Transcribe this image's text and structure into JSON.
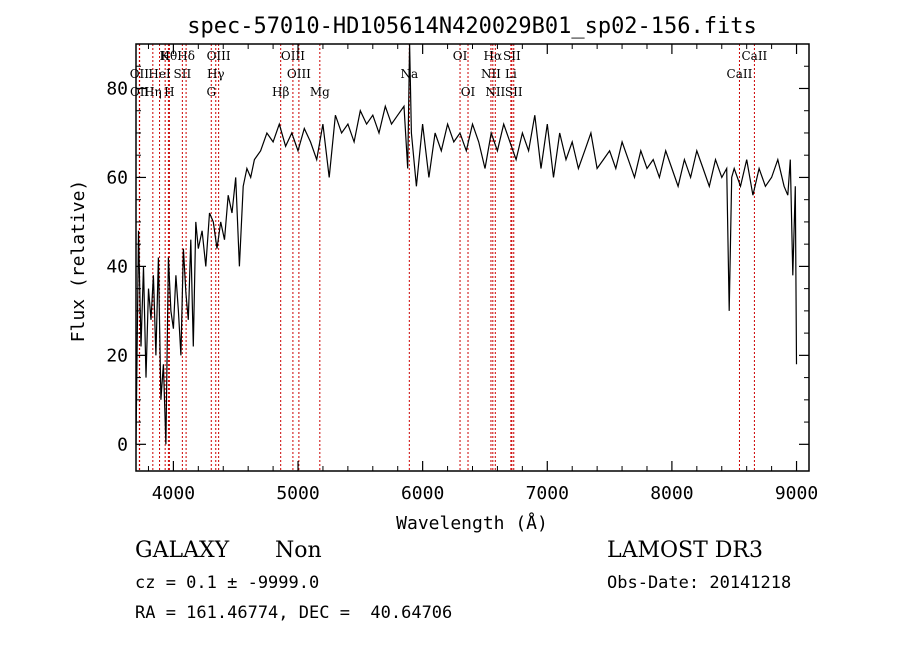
{
  "chart_data": {
    "type": "line",
    "title": "spec-57010-HD105614N420029B01_sp02-156.fits",
    "xlabel": "Wavelength (Å)",
    "ylabel": "Flux (relative)",
    "xlim": [
      3700,
      9100
    ],
    "ylim": [
      -6,
      90
    ],
    "xticks": [
      4000,
      5000,
      6000,
      7000,
      8000,
      9000
    ],
    "yticks": [
      0,
      20,
      40,
      60,
      80
    ],
    "line_color": "#000000",
    "marker_color": "#cc0000",
    "spectrum": {
      "x": [
        3700,
        3720,
        3740,
        3760,
        3780,
        3800,
        3820,
        3840,
        3860,
        3880,
        3900,
        3920,
        3940,
        3960,
        3980,
        4000,
        4020,
        4040,
        4060,
        4080,
        4100,
        4120,
        4140,
        4160,
        4180,
        4200,
        4230,
        4260,
        4290,
        4320,
        4350,
        4380,
        4410,
        4440,
        4470,
        4500,
        4530,
        4560,
        4590,
        4620,
        4650,
        4700,
        4750,
        4800,
        4850,
        4900,
        4950,
        5000,
        5050,
        5100,
        5150,
        5200,
        5250,
        5300,
        5350,
        5400,
        5450,
        5500,
        5550,
        5600,
        5650,
        5700,
        5750,
        5800,
        5850,
        5880,
        5895,
        5910,
        5950,
        6000,
        6050,
        6100,
        6150,
        6200,
        6250,
        6300,
        6350,
        6400,
        6450,
        6500,
        6550,
        6600,
        6650,
        6700,
        6750,
        6800,
        6850,
        6900,
        6950,
        7000,
        7050,
        7100,
        7150,
        7200,
        7250,
        7300,
        7350,
        7400,
        7450,
        7500,
        7550,
        7600,
        7650,
        7700,
        7750,
        7800,
        7850,
        7900,
        7950,
        8000,
        8050,
        8100,
        8150,
        8200,
        8250,
        8300,
        8350,
        8400,
        8440,
        8460,
        8480,
        8500,
        8550,
        8600,
        8650,
        8700,
        8750,
        8800,
        8850,
        8900,
        8930,
        8950,
        8970,
        8990,
        9000
      ],
      "y": [
        0,
        48,
        22,
        40,
        15,
        35,
        28,
        38,
        20,
        42,
        10,
        18,
        0,
        42,
        30,
        26,
        38,
        30,
        20,
        44,
        34,
        28,
        46,
        22,
        50,
        44,
        48,
        40,
        52,
        50,
        44,
        50,
        46,
        56,
        52,
        60,
        40,
        58,
        62,
        60,
        64,
        66,
        70,
        68,
        72,
        67,
        70,
        66,
        71,
        68,
        64,
        72,
        60,
        74,
        70,
        72,
        68,
        75,
        72,
        74,
        70,
        76,
        72,
        74,
        76,
        62,
        90,
        70,
        58,
        72,
        60,
        70,
        66,
        72,
        68,
        70,
        66,
        72,
        68,
        62,
        70,
        66,
        72,
        68,
        64,
        70,
        66,
        74,
        62,
        72,
        60,
        70,
        64,
        68,
        62,
        66,
        70,
        62,
        64,
        66,
        62,
        68,
        64,
        60,
        66,
        62,
        64,
        60,
        66,
        62,
        58,
        64,
        60,
        66,
        62,
        58,
        64,
        60,
        62,
        30,
        60,
        62,
        58,
        64,
        56,
        62,
        58,
        60,
        64,
        58,
        56,
        64,
        38,
        58,
        18
      ]
    },
    "lines": [
      {
        "label": "Hθ",
        "x": 3960,
        "row": 1
      },
      {
        "label": "K",
        "x": 3934,
        "row": 1
      },
      {
        "label": "Hδ",
        "x": 4102,
        "row": 1
      },
      {
        "label": "OIII",
        "x": 4363,
        "row": 1
      },
      {
        "label": "OIII",
        "x": 4959,
        "row": 1
      },
      {
        "label": "OI",
        "x": 6300,
        "row": 1
      },
      {
        "label": "Hα",
        "x": 6563,
        "row": 1
      },
      {
        "label": "SII",
        "x": 6716,
        "row": 1
      },
      {
        "label": "CaII",
        "x": 8662,
        "row": 1
      },
      {
        "label": "OII",
        "x": 3727,
        "row": 2
      },
      {
        "label": "HeI",
        "x": 3889,
        "row": 2
      },
      {
        "label": "SII",
        "x": 4072,
        "row": 2
      },
      {
        "label": "Hγ",
        "x": 4340,
        "row": 2
      },
      {
        "label": "OIII",
        "x": 5007,
        "row": 2
      },
      {
        "label": "Na",
        "x": 5893,
        "row": 2
      },
      {
        "label": "NII",
        "x": 6548,
        "row": 2
      },
      {
        "label": "Li",
        "x": 6708,
        "row": 2
      },
      {
        "label": "CaII",
        "x": 8542,
        "row": 2
      },
      {
        "label": "OII",
        "x": 3729,
        "row": 3
      },
      {
        "label": "Hη",
        "x": 3835,
        "row": 3
      },
      {
        "label": "H",
        "x": 3968,
        "row": 3
      },
      {
        "label": "G",
        "x": 4304,
        "row": 3
      },
      {
        "label": "Hβ",
        "x": 4861,
        "row": 3
      },
      {
        "label": "Mg",
        "x": 5175,
        "row": 3
      },
      {
        "label": "OI",
        "x": 6364,
        "row": 3
      },
      {
        "label": "NII",
        "x": 6583,
        "row": 3
      },
      {
        "label": "SII",
        "x": 6731,
        "row": 3
      }
    ]
  },
  "info": {
    "class": "GALAXY",
    "subclass": "Non",
    "survey": "LAMOST DR3",
    "cz": "cz = 0.1 ± -9999.0",
    "obs_date": "Obs-Date: 20141218",
    "coords": "RA = 161.46774, DEC =  40.64706"
  }
}
